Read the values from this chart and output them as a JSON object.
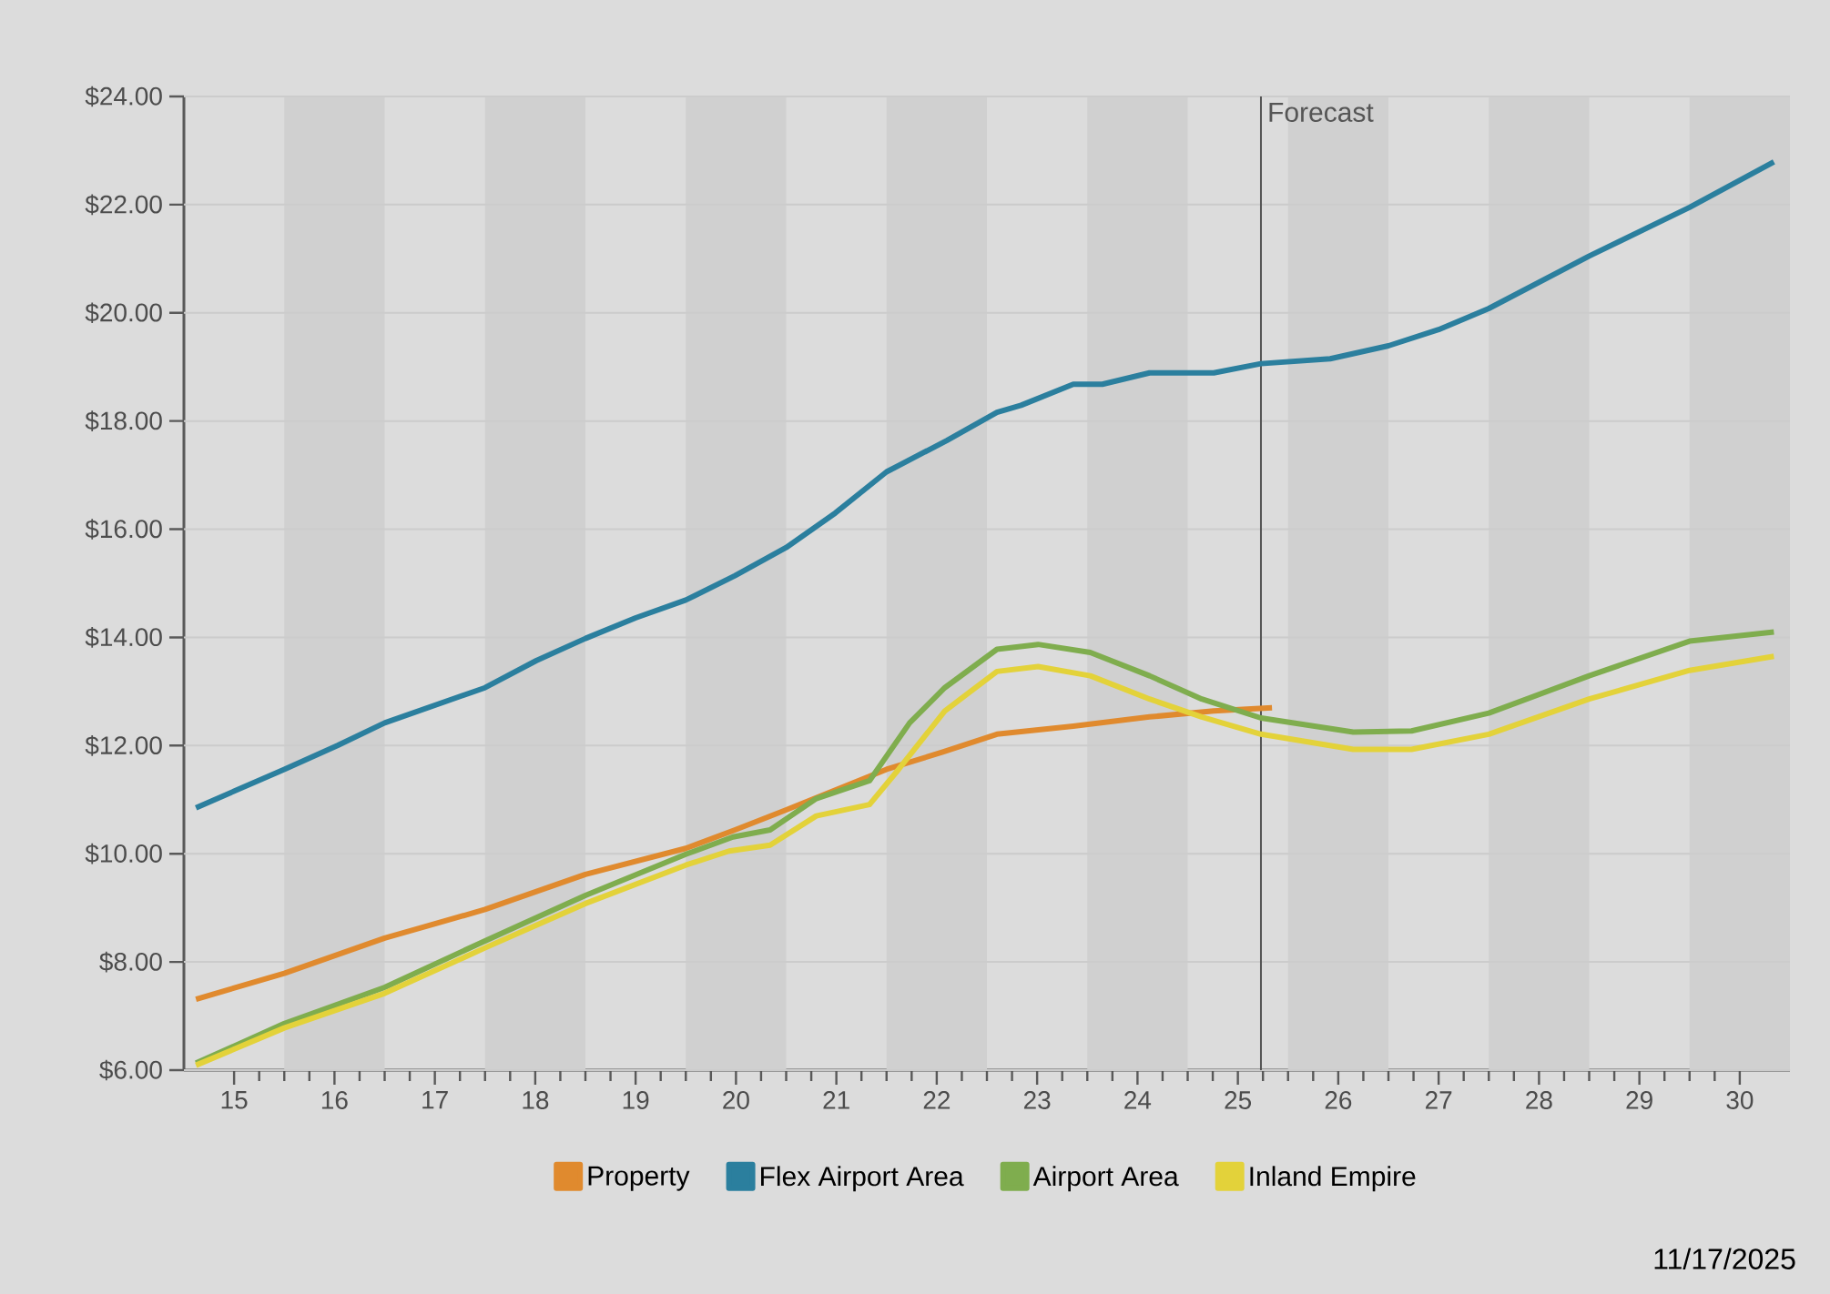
{
  "chart_data": {
    "type": "line",
    "x": [
      15.12,
      16.0,
      16.53,
      17.0,
      18.0,
      18.51,
      19.0,
      19.5,
      20.0,
      20.49,
      21.0,
      21.49,
      22.0,
      22.6,
      23.1,
      23.34,
      23.86,
      24.15,
      24.62,
      25.26,
      25.73,
      26.42,
      27.0,
      27.5,
      28.0,
      29.0,
      30.0,
      30.84
    ],
    "series": [
      {
        "name": "Property",
        "color": "#e08a2e",
        "x": [
          15.12,
          16.0,
          17.0,
          18.0,
          19.0,
          20.0,
          20.49,
          21.0,
          22.0,
          22.56,
          23.1,
          23.86,
          24.62,
          25.26,
          25.84
        ],
        "values": [
          7.31,
          7.79,
          8.44,
          8.97,
          9.62,
          10.1,
          10.44,
          10.81,
          11.56,
          11.88,
          12.21,
          12.36,
          12.53,
          12.64,
          12.7
        ]
      },
      {
        "name": "Flex Airport Area",
        "color": "#2b7f9e",
        "values": [
          10.85,
          11.56,
          12.0,
          12.42,
          13.07,
          13.57,
          13.98,
          14.36,
          14.69,
          15.14,
          15.66,
          16.3,
          17.06,
          17.64,
          18.16,
          18.29,
          18.68,
          18.68,
          18.89,
          18.89,
          19.06,
          19.15,
          19.39,
          19.69,
          20.08,
          21.05,
          21.95,
          22.79
        ]
      },
      {
        "name": "Airport Area",
        "color": "#7fad4e",
        "x": [
          15.12,
          16.0,
          17.0,
          18.0,
          19.0,
          20.0,
          20.47,
          20.84,
          21.3,
          21.83,
          22.23,
          22.58,
          23.1,
          23.51,
          24.03,
          24.62,
          25.14,
          25.73,
          26.65,
          27.23,
          28.0,
          29.0,
          30.0,
          30.84
        ],
        "values": [
          6.13,
          6.86,
          7.53,
          8.39,
          9.23,
          9.99,
          10.31,
          10.44,
          11.02,
          11.35,
          12.42,
          13.07,
          13.78,
          13.87,
          13.72,
          13.29,
          12.86,
          12.51,
          12.25,
          12.27,
          12.6,
          13.29,
          13.93,
          14.1
        ]
      },
      {
        "name": "Inland Empire",
        "color": "#e3d23a",
        "x": [
          15.12,
          16.0,
          17.0,
          18.0,
          19.0,
          20.0,
          20.43,
          20.84,
          21.3,
          21.83,
          22.12,
          22.58,
          23.1,
          23.51,
          24.03,
          24.62,
          25.14,
          25.73,
          26.65,
          27.23,
          28.0,
          29.0,
          30.0,
          30.84
        ],
        "values": [
          6.09,
          6.78,
          7.42,
          8.26,
          9.08,
          9.79,
          10.05,
          10.16,
          10.7,
          10.91,
          11.56,
          12.64,
          13.37,
          13.46,
          13.29,
          12.86,
          12.53,
          12.21,
          11.93,
          11.93,
          12.21,
          12.86,
          13.39,
          13.65
        ]
      }
    ],
    "xlim": [
      15,
      31
    ],
    "xticks": [
      {
        "value": 15.5,
        "label": "15"
      },
      {
        "value": 16.5,
        "label": "16"
      },
      {
        "value": 17.5,
        "label": "17"
      },
      {
        "value": 18.5,
        "label": "18"
      },
      {
        "value": 19.5,
        "label": "19"
      },
      {
        "value": 20.5,
        "label": "20"
      },
      {
        "value": 21.5,
        "label": "21"
      },
      {
        "value": 22.5,
        "label": "22"
      },
      {
        "value": 23.5,
        "label": "23"
      },
      {
        "value": 24.5,
        "label": "24"
      },
      {
        "value": 25.5,
        "label": "25"
      },
      {
        "value": 26.5,
        "label": "26"
      },
      {
        "value": 27.5,
        "label": "27"
      },
      {
        "value": 28.5,
        "label": "28"
      },
      {
        "value": 29.5,
        "label": "29"
      },
      {
        "value": 30.5,
        "label": "30"
      }
    ],
    "ylim": [
      6,
      24
    ],
    "yticks": [
      {
        "value": 6,
        "label": "$6.00"
      },
      {
        "value": 8,
        "label": "$8.00"
      },
      {
        "value": 10,
        "label": "$10.00"
      },
      {
        "value": 12,
        "label": "$12.00"
      },
      {
        "value": 14,
        "label": "$14.00"
      },
      {
        "value": 16,
        "label": "$16.00"
      },
      {
        "value": 18,
        "label": "$18.00"
      },
      {
        "value": 20,
        "label": "$20.00"
      },
      {
        "value": 22,
        "label": "$22.00"
      },
      {
        "value": 24,
        "label": "$24.00"
      }
    ],
    "grid": "y",
    "legend": "bottom",
    "marker": "none",
    "line_style": "solid",
    "ref_lines": [
      {
        "axis": "x",
        "value": 25.73,
        "label": "Forecast",
        "color": "#555555"
      }
    ],
    "bands": [
      {
        "axis": "x",
        "from": 16,
        "to": 17,
        "color": "#d0d0d0"
      },
      {
        "axis": "x",
        "from": 18,
        "to": 19,
        "color": "#d0d0d0"
      },
      {
        "axis": "x",
        "from": 20,
        "to": 21,
        "color": "#d0d0d0"
      },
      {
        "axis": "x",
        "from": 22,
        "to": 23,
        "color": "#d0d0d0"
      },
      {
        "axis": "x",
        "from": 24,
        "to": 25,
        "color": "#d0d0d0"
      },
      {
        "axis": "x",
        "from": 26,
        "to": 27,
        "color": "#d0d0d0"
      },
      {
        "axis": "x",
        "from": 28,
        "to": 29,
        "color": "#d0d0d0"
      },
      {
        "axis": "x",
        "from": 30,
        "to": 31,
        "color": "#d0d0d0"
      }
    ],
    "annotations": [
      "11/17/2025"
    ]
  }
}
